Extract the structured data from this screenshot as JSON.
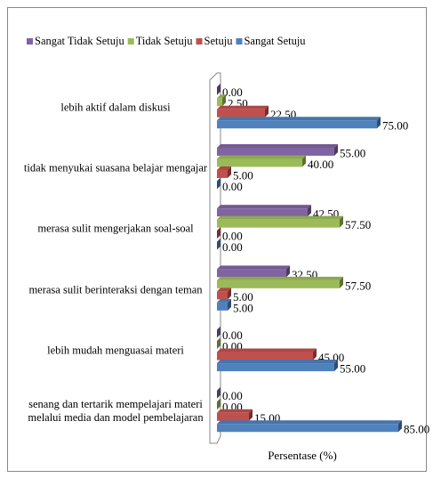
{
  "chart_data": {
    "type": "bar",
    "orientation": "horizontal",
    "x_label": "Persentase (%)",
    "categories": [
      "lebih aktif dalam diskusi",
      "tidak menyukai suasana belajar mengajar",
      "merasa sulit mengerjakan soal-soal",
      "merasa sulit berinteraksi dengan teman",
      "lebih mudah menguasai materi",
      "senang dan tertarik mempelajari materi melalui media dan model pembelajaran"
    ],
    "series": [
      {
        "name": "Sangat Tidak Setuju",
        "color": "#8064a2",
        "values": [
          0,
          55,
          42.5,
          32.5,
          0,
          0
        ],
        "value_labels": [
          "0.00",
          "55.00",
          "42.50",
          "32.50",
          "0.00",
          "0.00"
        ]
      },
      {
        "name": "Tidak Setuju",
        "color": "#9bbb59",
        "values": [
          2.5,
          40,
          57.5,
          57.5,
          0,
          0
        ],
        "value_labels": [
          "2.50",
          "40.00",
          "57.50",
          "57.50",
          "0.00",
          "0.00"
        ]
      },
      {
        "name": "Setuju",
        "color": "#c0504d",
        "values": [
          22.5,
          5,
          0,
          5,
          45,
          15
        ],
        "value_labels": [
          "22.50",
          "5.00",
          "0.00",
          "5.00",
          "45.00",
          "15.00"
        ]
      },
      {
        "name": "Sangat Setuju",
        "color": "#4f81bd",
        "values": [
          75,
          0,
          0,
          5,
          55,
          85
        ],
        "value_labels": [
          "75.00",
          "0.00",
          "0.00",
          "5.00",
          "55.00",
          "85.00"
        ]
      }
    ],
    "xlim": [
      0,
      100
    ],
    "legend": "top"
  }
}
